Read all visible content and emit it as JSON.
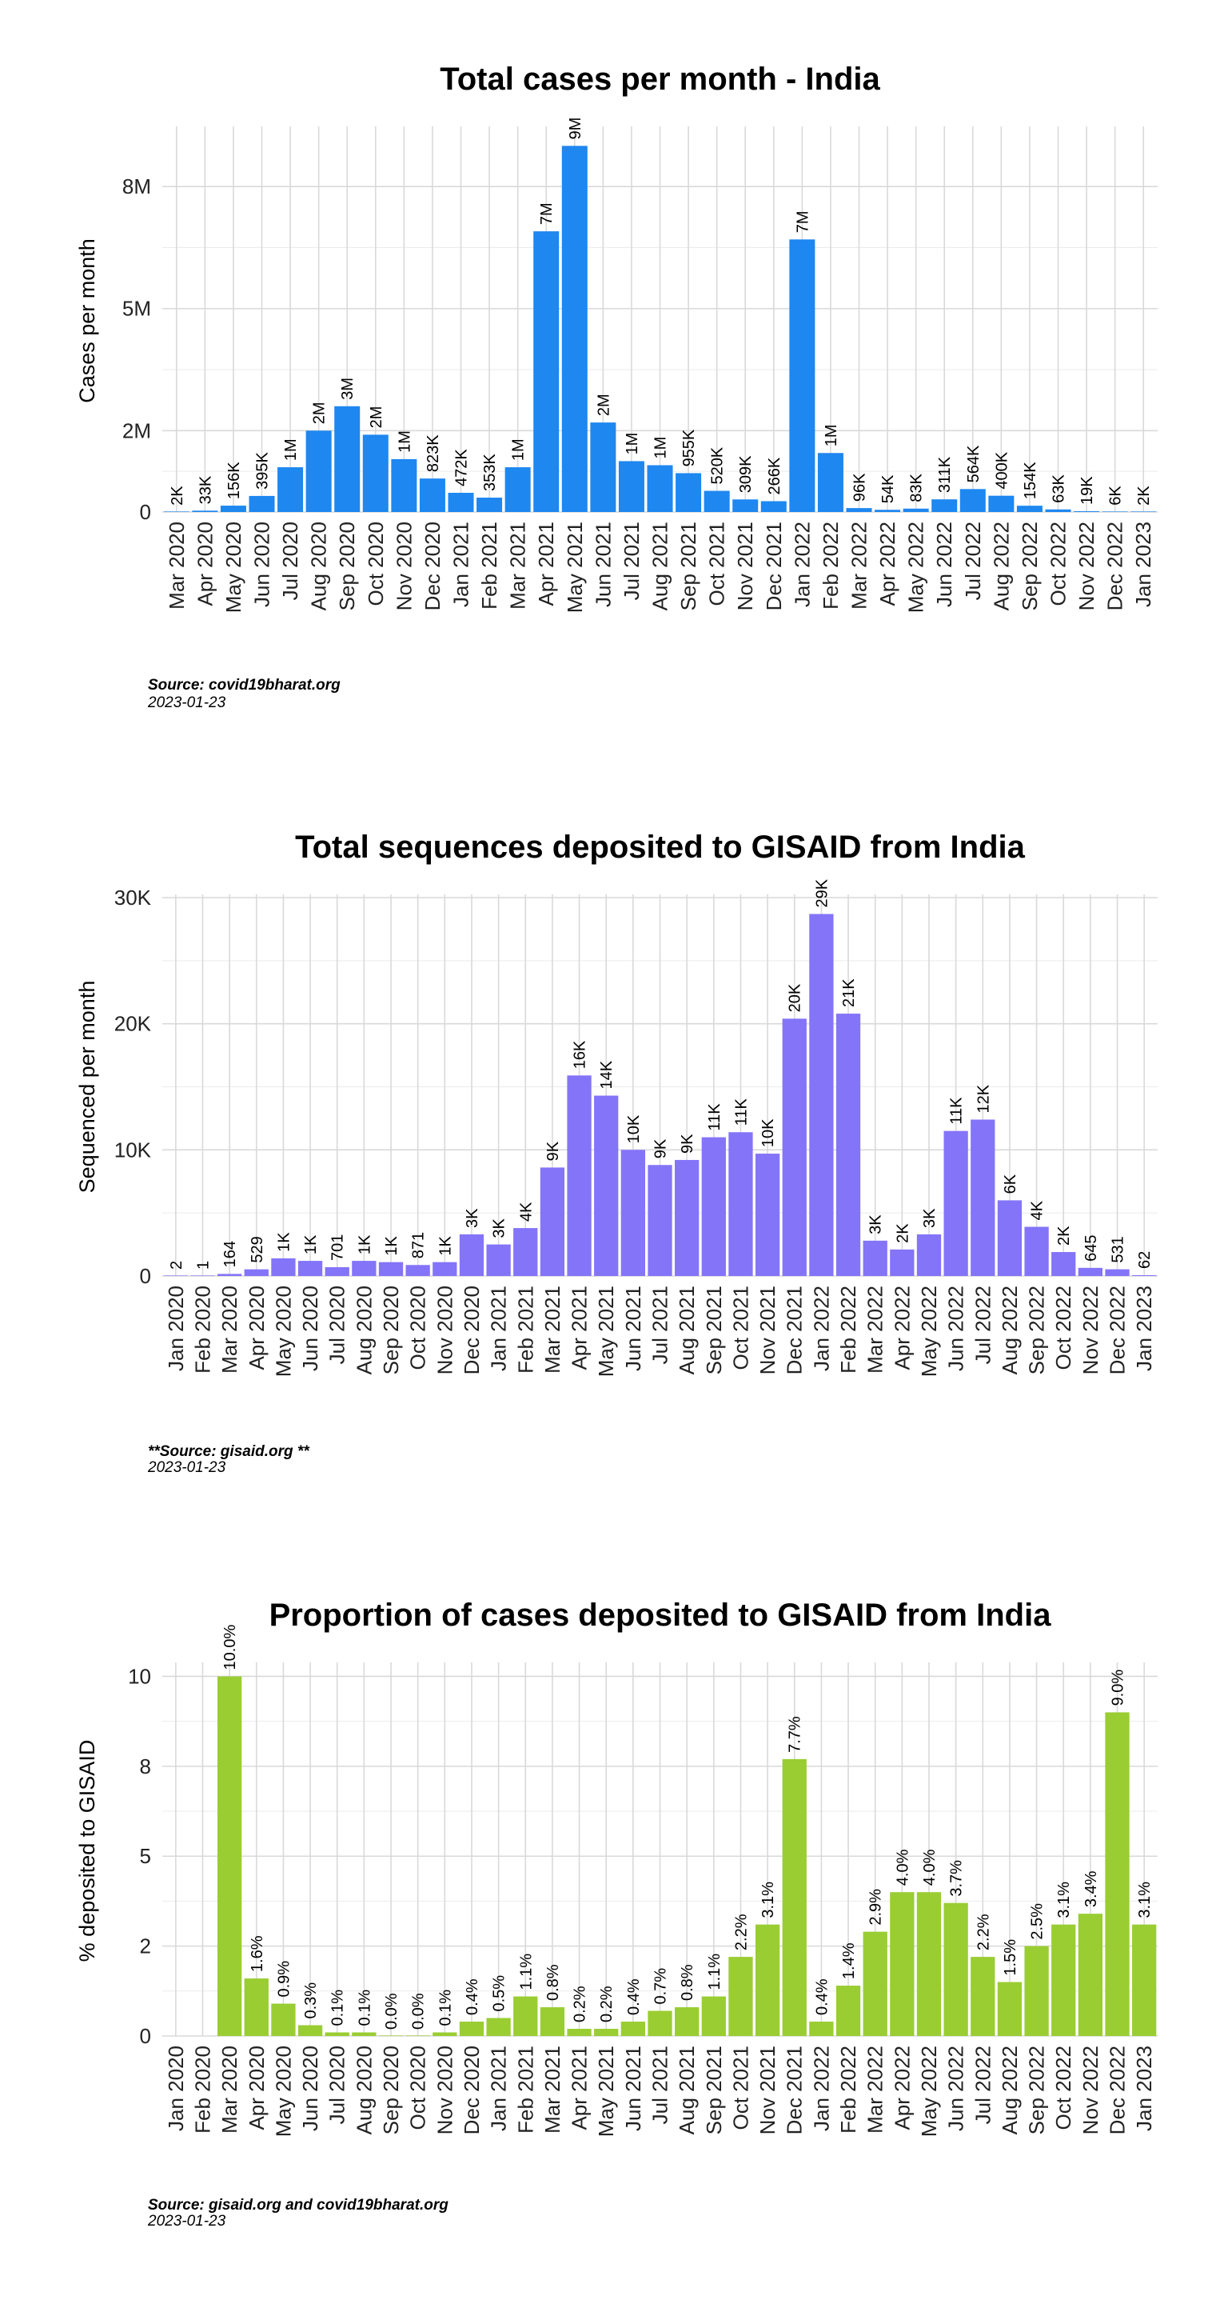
{
  "chart_data": [
    {
      "type": "bar",
      "title": "Total cases per month - India",
      "xlabel": "",
      "ylabel": "Cases per month",
      "ylim": [
        0,
        9400000
      ],
      "yticks": [
        0,
        2000000,
        5000000,
        8000000
      ],
      "ytick_labels": [
        "0",
        "2M",
        "5M",
        "8M"
      ],
      "grid": true,
      "color": "#1e87f0",
      "categories": [
        "Mar 2020",
        "Apr 2020",
        "May 2020",
        "Jun 2020",
        "Jul 2020",
        "Aug 2020",
        "Sep 2020",
        "Oct 2020",
        "Nov 2020",
        "Dec 2020",
        "Jan 2021",
        "Feb 2021",
        "Mar 2021",
        "Apr 2021",
        "May 2021",
        "Jun 2021",
        "Jul 2021",
        "Aug 2021",
        "Sep 2021",
        "Oct 2021",
        "Nov 2021",
        "Dec 2021",
        "Jan 2022",
        "Feb 2022",
        "Mar 2022",
        "Apr 2022",
        "May 2022",
        "Jun 2022",
        "Jul 2022",
        "Aug 2022",
        "Sep 2022",
        "Oct 2022",
        "Nov 2022",
        "Dec 2022",
        "Jan 2023"
      ],
      "values": [
        1600,
        33000,
        156000,
        395000,
        1100000,
        2000000,
        2600000,
        1900000,
        1300000,
        823000,
        472000,
        353000,
        1100000,
        6900000,
        9000000,
        2200000,
        1250000,
        1150000,
        955000,
        520000,
        309000,
        266000,
        6700000,
        1450000,
        96000,
        54000,
        83000,
        311000,
        564000,
        400000,
        154000,
        63000,
        19000,
        6000,
        2000
      ],
      "data_labels": [
        "2K",
        "33K",
        "156K",
        "395K",
        "1M",
        "2M",
        "3M",
        "2M",
        "1M",
        "823K",
        "472K",
        "353K",
        "1M",
        "7M",
        "9M",
        "2M",
        "1M",
        "1M",
        "955K",
        "520K",
        "309K",
        "266K",
        "7M",
        "1M",
        "96K",
        "54K",
        "83K",
        "311K",
        "564K",
        "400K",
        "154K",
        "63K",
        "19K",
        "6K",
        "2K"
      ],
      "source": "Source: covid19bharat.org",
      "date": "2023-01-23"
    },
    {
      "type": "bar",
      "title": "Total sequences deposited to GISAID from India",
      "xlabel": "",
      "ylabel": "Sequenced per month",
      "ylim": [
        0,
        30000
      ],
      "yticks": [
        0,
        10000,
        20000,
        30000
      ],
      "ytick_labels": [
        "0",
        "10K",
        "20K",
        "30K"
      ],
      "grid": true,
      "color": "#8474f8",
      "categories": [
        "Jan 2020",
        "Feb 2020",
        "Mar 2020",
        "Apr 2020",
        "May 2020",
        "Jun 2020",
        "Jul 2020",
        "Aug 2020",
        "Sep 2020",
        "Oct 2020",
        "Nov 2020",
        "Dec 2020",
        "Jan 2021",
        "Feb 2021",
        "Mar 2021",
        "Apr 2021",
        "May 2021",
        "Jun 2021",
        "Jul 2021",
        "Aug 2021",
        "Sep 2021",
        "Oct 2021",
        "Nov 2021",
        "Dec 2021",
        "Jan 2022",
        "Feb 2022",
        "Mar 2022",
        "Apr 2022",
        "May 2022",
        "Jun 2022",
        "Jul 2022",
        "Aug 2022",
        "Sep 2022",
        "Oct 2022",
        "Nov 2022",
        "Dec 2022",
        "Jan 2023"
      ],
      "values": [
        2,
        1,
        164,
        529,
        1400,
        1200,
        701,
        1200,
        1100,
        871,
        1100,
        3300,
        2500,
        3800,
        8600,
        15900,
        14300,
        10000,
        8800,
        9200,
        11000,
        11400,
        9700,
        20400,
        28700,
        20800,
        2800,
        2100,
        3300,
        11500,
        12400,
        6000,
        3900,
        1900,
        645,
        531,
        62
      ],
      "data_labels": [
        "2",
        "1",
        "164",
        "529",
        "1K",
        "1K",
        "701",
        "1K",
        "1K",
        "871",
        "1K",
        "3K",
        "3K",
        "4K",
        "9K",
        "16K",
        "14K",
        "10K",
        "9K",
        "9K",
        "11K",
        "11K",
        "10K",
        "20K",
        "29K",
        "21K",
        "3K",
        "2K",
        "3K",
        "11K",
        "12K",
        "6K",
        "4K",
        "2K",
        "645",
        "531",
        "62"
      ],
      "source": "**Source: gisaid.org **",
      "date": "2023-01-23"
    },
    {
      "type": "bar",
      "title": "Proportion of cases deposited to GISAID from India",
      "xlabel": "",
      "ylabel": "%  deposited to GISAID",
      "ylim": [
        0,
        10.3
      ],
      "yticks": [
        0,
        2.5,
        5,
        7.5,
        10
      ],
      "ytick_labels": [
        "0",
        "2",
        "5",
        "8",
        "10"
      ],
      "grid": true,
      "color": "#9acd32",
      "categories": [
        "Jan 2020",
        "Feb 2020",
        "Mar 2020",
        "Apr 2020",
        "May 2020",
        "Jun 2020",
        "Jul 2020",
        "Aug 2020",
        "Sep 2020",
        "Oct 2020",
        "Nov 2020",
        "Dec 2020",
        "Jan 2021",
        "Feb 2021",
        "Mar 2021",
        "Apr 2021",
        "May 2021",
        "Jun 2021",
        "Jul 2021",
        "Aug 2021",
        "Sep 2021",
        "Oct 2021",
        "Nov 2021",
        "Dec 2021",
        "Jan 2022",
        "Feb 2022",
        "Mar 2022",
        "Apr 2022",
        "May 2022",
        "Jun 2022",
        "Jul 2022",
        "Aug 2022",
        "Sep 2022",
        "Oct 2022",
        "Nov 2022",
        "Dec 2022",
        "Jan 2023"
      ],
      "values": [
        null,
        null,
        10.0,
        1.6,
        0.9,
        0.3,
        0.1,
        0.1,
        0.0,
        0.0,
        0.1,
        0.4,
        0.5,
        1.1,
        0.8,
        0.2,
        0.2,
        0.4,
        0.7,
        0.8,
        1.1,
        2.2,
        3.1,
        7.7,
        0.4,
        1.4,
        2.9,
        4.0,
        4.0,
        3.7,
        2.2,
        1.5,
        2.5,
        3.1,
        3.4,
        9.0,
        3.1
      ],
      "data_labels": [
        "",
        "",
        "10.0%",
        "1.6%",
        "0.9%",
        "0.3%",
        "0.1%",
        "0.1%",
        "0.0%",
        "0.0%",
        "0.1%",
        "0.4%",
        "0.5%",
        "1.1%",
        "0.8%",
        "0.2%",
        "0.2%",
        "0.4%",
        "0.7%",
        "0.8%",
        "1.1%",
        "2.2%",
        "3.1%",
        "7.7%",
        "0.4%",
        "1.4%",
        "2.9%",
        "4.0%",
        "4.0%",
        "3.7%",
        "2.2%",
        "1.5%",
        "2.5%",
        "3.1%",
        "3.4%",
        "9.0%",
        "3.1%"
      ],
      "source": "Source: gisaid.org and covid19bharat.org",
      "date": "2023-01-23"
    }
  ]
}
